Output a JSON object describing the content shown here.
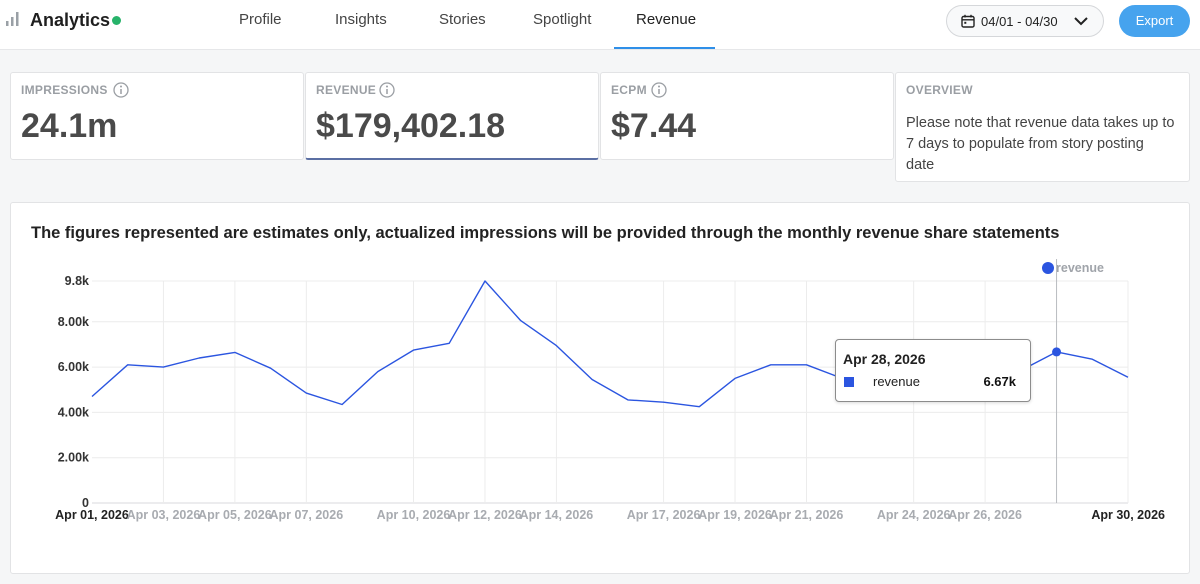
{
  "header": {
    "title": "Analytics",
    "tabs": [
      {
        "label": "Profile"
      },
      {
        "label": "Insights"
      },
      {
        "label": "Stories"
      },
      {
        "label": "Spotlight"
      },
      {
        "label": "Revenue",
        "active": true
      }
    ],
    "date_range": "04/01 - 04/30",
    "export_label": "Export"
  },
  "stats": {
    "impressions": {
      "label": "IMPRESSIONS",
      "value": "24.1m"
    },
    "revenue": {
      "label": "REVENUE",
      "value": "$179,402.18"
    },
    "ecpm": {
      "label": "ECPM",
      "value": "$7.44"
    },
    "overview": {
      "label": "OVERVIEW",
      "text": "Please note that revenue data takes up to 7 days to populate from story posting date"
    }
  },
  "panel": {
    "title": "The figures represented are estimates only, actualized impressions will be provided through the monthly revenue share statements"
  },
  "tooltip": {
    "date": "Apr 28, 2026",
    "series": "revenue",
    "value": "6.67k"
  },
  "colors": {
    "accent": "#46a3ee",
    "series": "#2b55e0",
    "status_dot": "#27b36a"
  },
  "chart_data": {
    "type": "line",
    "ylim": [
      0,
      9800
    ],
    "y_ticks": [
      {
        "value": 0,
        "label": "0"
      },
      {
        "value": 2000,
        "label": "2.00k"
      },
      {
        "value": 4000,
        "label": "4.00k"
      },
      {
        "value": 6000,
        "label": "6.00k"
      },
      {
        "value": 8000,
        "label": "8.00k"
      },
      {
        "value": 9800,
        "label": "9.8k"
      }
    ],
    "x_ticks": [
      {
        "day": 1,
        "label": "Apr 01, 2026",
        "emphasis": true
      },
      {
        "day": 3,
        "label": "Apr 03, 2026"
      },
      {
        "day": 5,
        "label": "Apr 05, 2026"
      },
      {
        "day": 7,
        "label": "Apr 07, 2026"
      },
      {
        "day": 10,
        "label": "Apr 10, 2026"
      },
      {
        "day": 12,
        "label": "Apr 12, 2026"
      },
      {
        "day": 14,
        "label": "Apr 14, 2026"
      },
      {
        "day": 17,
        "label": "Apr 17, 2026"
      },
      {
        "day": 19,
        "label": "Apr 19, 2026"
      },
      {
        "day": 21,
        "label": "Apr 21, 2026"
      },
      {
        "day": 24,
        "label": "Apr 24, 2026"
      },
      {
        "day": 26,
        "label": "Apr 26, 2026"
      },
      {
        "day": 30,
        "label": "Apr 30, 2026",
        "emphasis": true
      }
    ],
    "series": [
      {
        "name": "revenue",
        "days": [
          1,
          2,
          3,
          4,
          5,
          6,
          7,
          8,
          9,
          10,
          11,
          12,
          13,
          14,
          15,
          16,
          17,
          18,
          19,
          20,
          21,
          22,
          23,
          24,
          25,
          26,
          27,
          28,
          29,
          30
        ],
        "values": [
          4700,
          6100,
          6000,
          6400,
          6650,
          5950,
          4850,
          4350,
          5800,
          6750,
          7050,
          9800,
          8050,
          6950,
          5450,
          4550,
          4450,
          4250,
          5500,
          6100,
          6100,
          5500,
          5350,
          5800,
          6350,
          6100,
          5850,
          6670,
          6350,
          5550
        ]
      }
    ],
    "highlight_day": 28,
    "legend_position": "top-right",
    "grid": true
  }
}
